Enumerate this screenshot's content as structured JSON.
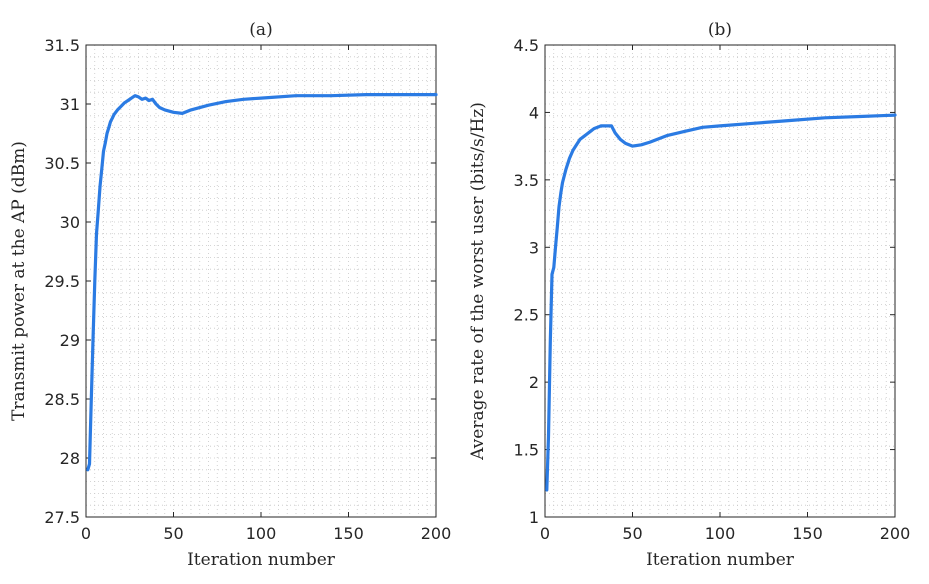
{
  "chart_data": [
    {
      "type": "line",
      "title": "(a)",
      "xlabel": "Iteration number",
      "ylabel": "Transmit power at the AP (dBm)",
      "xlim": [
        0,
        200
      ],
      "ylim": [
        27.5,
        31.5
      ],
      "xticks": [
        0,
        50,
        100,
        150,
        200
      ],
      "yticks": [
        27.5,
        28,
        28.5,
        29,
        29.5,
        30,
        30.5,
        31,
        31.5
      ],
      "ytick_labels": [
        "27.5",
        "28",
        "28.5",
        "29",
        "29.5",
        "30",
        "30.5",
        "31",
        "31.5"
      ],
      "grid": "minor-dotted",
      "line_color": "#2b7be3",
      "series": [
        {
          "name": "transmit-power",
          "x": [
            1,
            2,
            3,
            4,
            5,
            6,
            7,
            8,
            9,
            10,
            11,
            12,
            13,
            14,
            15,
            16,
            18,
            20,
            22,
            24,
            26,
            28,
            30,
            32,
            34,
            36,
            38,
            40,
            42,
            45,
            50,
            55,
            60,
            70,
            80,
            90,
            100,
            120,
            140,
            160,
            180,
            200
          ],
          "values": [
            27.9,
            27.95,
            28.5,
            29.0,
            29.5,
            29.9,
            30.1,
            30.3,
            30.45,
            30.6,
            30.67,
            30.75,
            30.8,
            30.85,
            30.88,
            30.91,
            30.95,
            30.98,
            31.01,
            31.03,
            31.05,
            31.07,
            31.06,
            31.04,
            31.05,
            31.03,
            31.04,
            31.0,
            30.97,
            30.95,
            30.93,
            30.92,
            30.95,
            30.99,
            31.02,
            31.04,
            31.05,
            31.07,
            31.07,
            31.08,
            31.08,
            31.08
          ]
        }
      ]
    },
    {
      "type": "line",
      "title": "(b)",
      "xlabel": "Iteration number",
      "ylabel": "Average rate of the worst user (bits/s/Hz)",
      "xlim": [
        0,
        200
      ],
      "ylim": [
        1,
        4.5
      ],
      "xticks": [
        0,
        50,
        100,
        150,
        200
      ],
      "yticks": [
        1,
        1.5,
        2,
        2.5,
        3,
        3.5,
        4,
        4.5
      ],
      "ytick_labels": [
        "1",
        "1.5",
        "2",
        "2.5",
        "3",
        "3.5",
        "4",
        "4.5"
      ],
      "grid": "minor-dotted",
      "line_color": "#2b7be3",
      "series": [
        {
          "name": "worst-user-rate",
          "x": [
            1,
            2,
            3,
            4,
            5,
            6,
            7,
            8,
            9,
            10,
            12,
            14,
            16,
            18,
            20,
            22,
            24,
            26,
            28,
            30,
            32,
            34,
            36,
            38,
            40,
            43,
            46,
            50,
            55,
            60,
            70,
            80,
            90,
            100,
            120,
            140,
            160,
            180,
            200
          ],
          "values": [
            1.2,
            1.6,
            2.3,
            2.8,
            2.85,
            3.0,
            3.15,
            3.3,
            3.4,
            3.48,
            3.58,
            3.66,
            3.72,
            3.76,
            3.8,
            3.82,
            3.84,
            3.86,
            3.88,
            3.89,
            3.9,
            3.9,
            3.9,
            3.9,
            3.85,
            3.8,
            3.77,
            3.75,
            3.76,
            3.78,
            3.83,
            3.86,
            3.89,
            3.9,
            3.92,
            3.94,
            3.96,
            3.97,
            3.98
          ]
        }
      ]
    }
  ]
}
